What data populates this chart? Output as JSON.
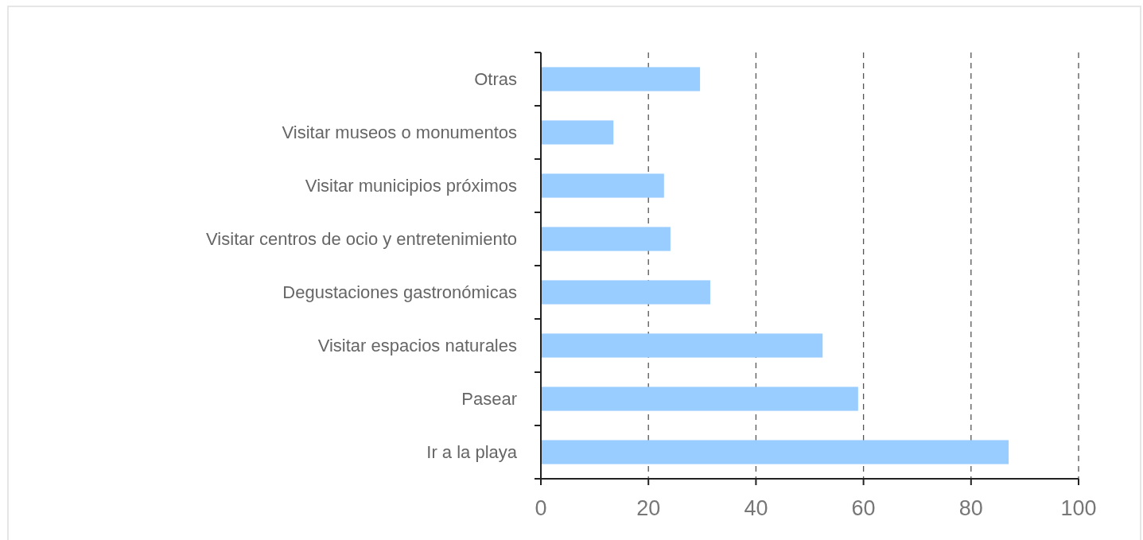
{
  "chart_data": {
    "type": "bar",
    "orientation": "horizontal",
    "categories": [
      "Otras",
      "Visitar museos o monumentos",
      "Visitar municipios próximos",
      "Visitar centros de ocio y entretenimiento",
      "Degustaciones gastronómicas",
      "Visitar espacios naturales",
      "Pasear",
      "Ir a la playa"
    ],
    "values": [
      29.6,
      13.5,
      22.9,
      24.1,
      31.5,
      52.4,
      59.0,
      87.0
    ],
    "color": "#99ccff",
    "xlim": [
      0,
      100
    ],
    "xticks": [
      0,
      20,
      40,
      60,
      80,
      100
    ],
    "grid": "x"
  }
}
